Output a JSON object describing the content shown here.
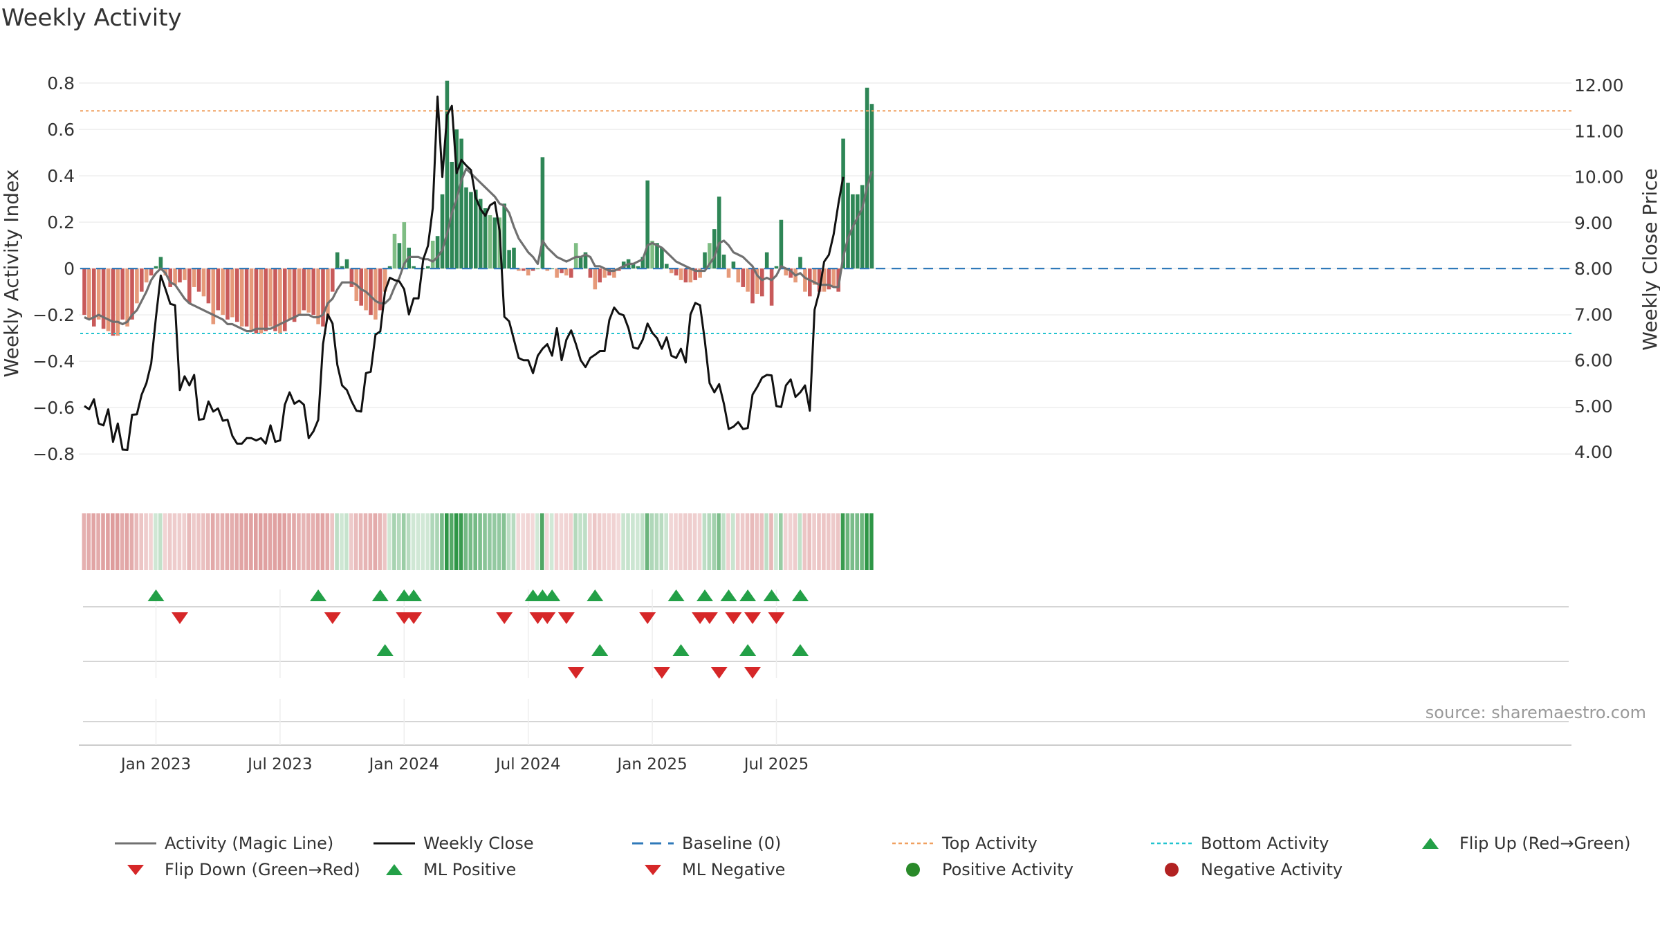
{
  "chart_data": {
    "type": "bar",
    "title": "Weekly Activity",
    "ylabel_left": "Weekly Activity Index",
    "ylabel_right": "Weekly Close Price",
    "ylim_left": [
      -0.88,
      0.83
    ],
    "ylim_right": [
      3.55,
      12.2
    ],
    "yticks_left": [
      "0.8",
      "0.6",
      "0.4",
      "0.2",
      "0",
      "−0.2",
      "−0.4",
      "−0.6",
      "−0.8"
    ],
    "yticks_left_values": [
      0.8,
      0.6,
      0.4,
      0.2,
      0,
      -0.2,
      -0.4,
      -0.6,
      -0.8
    ],
    "yticks_right": [
      "12.00",
      "11.00",
      "10.00",
      "9.00",
      "8.00",
      "7.00",
      "6.00",
      "5.00",
      "4.00"
    ],
    "yticks_right_values": [
      12,
      11,
      10,
      9,
      8,
      7,
      6,
      5,
      4
    ],
    "xticks": [
      "Jan 2023",
      "Jul 2023",
      "Jan 2024",
      "Jul 2024",
      "Jan 2025",
      "Jul 2025"
    ],
    "xticks_week_index": [
      15,
      41,
      67,
      93,
      119,
      145
    ],
    "top_activity": 0.68,
    "bottom_activity": -0.28,
    "baseline": 0,
    "activity": [
      -0.2,
      -0.22,
      -0.25,
      -0.22,
      -0.26,
      -0.27,
      -0.29,
      -0.29,
      -0.22,
      -0.25,
      -0.22,
      -0.15,
      -0.1,
      -0.06,
      -0.03,
      0.01,
      0.05,
      -0.03,
      -0.08,
      -0.07,
      -0.06,
      -0.05,
      -0.15,
      -0.08,
      -0.1,
      -0.12,
      -0.15,
      -0.24,
      -0.18,
      -0.2,
      -0.22,
      -0.21,
      -0.23,
      -0.25,
      -0.25,
      -0.27,
      -0.28,
      -0.28,
      -0.27,
      -0.25,
      -0.27,
      -0.28,
      -0.27,
      -0.22,
      -0.23,
      -0.2,
      -0.18,
      -0.19,
      -0.2,
      -0.24,
      -0.25,
      -0.22,
      -0.1,
      0.07,
      0.01,
      0.04,
      -0.08,
      -0.14,
      -0.16,
      -0.18,
      -0.2,
      -0.22,
      -0.18,
      -0.1,
      0.01,
      0.15,
      0.11,
      0.2,
      0.09,
      0.01,
      0.0,
      0.0,
      0.01,
      0.12,
      0.14,
      0.32,
      0.81,
      0.46,
      0.6,
      0.56,
      0.35,
      0.33,
      0.34,
      0.3,
      0.26,
      0.23,
      0.22,
      0.22,
      0.28,
      0.08,
      0.09,
      -0.01,
      -0.01,
      -0.03,
      -0.01,
      0.0,
      0.48,
      -0.01,
      0.0,
      -0.04,
      -0.02,
      -0.03,
      -0.04,
      0.11,
      0.05,
      0.07,
      -0.04,
      -0.09,
      -0.06,
      -0.04,
      -0.03,
      -0.04,
      -0.01,
      0.03,
      0.04,
      0.02,
      0.01,
      0.05,
      0.38,
      0.12,
      0.11,
      0.09,
      0.02,
      -0.02,
      -0.03,
      -0.05,
      -0.06,
      -0.06,
      -0.05,
      -0.04,
      0.07,
      0.11,
      0.17,
      0.31,
      0.06,
      -0.04,
      0.03,
      -0.06,
      -0.08,
      -0.1,
      -0.15,
      -0.11,
      -0.12,
      0.07,
      -0.16,
      0.01,
      0.21,
      -0.03,
      -0.04,
      -0.06,
      0.05,
      -0.1,
      -0.12,
      -0.07,
      -0.1,
      -0.1,
      -0.09,
      -0.08,
      -0.1,
      0.56,
      0.37,
      0.32,
      0.32,
      0.36,
      0.78,
      0.71
    ],
    "magic_line": [
      -0.21,
      -0.22,
      -0.21,
      -0.2,
      -0.21,
      -0.22,
      -0.23,
      -0.23,
      -0.24,
      -0.23,
      -0.2,
      -0.18,
      -0.14,
      -0.1,
      -0.05,
      -0.02,
      0.0,
      -0.02,
      -0.06,
      -0.07,
      -0.1,
      -0.13,
      -0.15,
      -0.16,
      -0.17,
      -0.18,
      -0.19,
      -0.2,
      -0.21,
      -0.22,
      -0.24,
      -0.24,
      -0.25,
      -0.26,
      -0.27,
      -0.27,
      -0.26,
      -0.26,
      -0.26,
      -0.26,
      -0.25,
      -0.24,
      -0.23,
      -0.22,
      -0.21,
      -0.2,
      -0.2,
      -0.2,
      -0.21,
      -0.21,
      -0.2,
      -0.15,
      -0.13,
      -0.09,
      -0.06,
      -0.06,
      -0.06,
      -0.07,
      -0.09,
      -0.1,
      -0.12,
      -0.14,
      -0.15,
      -0.15,
      -0.13,
      -0.08,
      -0.04,
      0.02,
      0.05,
      0.05,
      0.05,
      0.04,
      0.04,
      0.03,
      0.05,
      0.08,
      0.15,
      0.24,
      0.3,
      0.38,
      0.43,
      0.41,
      0.39,
      0.37,
      0.35,
      0.33,
      0.31,
      0.28,
      0.27,
      0.24,
      0.18,
      0.13,
      0.1,
      0.07,
      0.05,
      0.02,
      0.12,
      0.09,
      0.07,
      0.05,
      0.04,
      0.03,
      0.04,
      0.05,
      0.05,
      0.06,
      0.05,
      0.01,
      0.01,
      0.0,
      -0.01,
      -0.01,
      0.0,
      0.01,
      0.02,
      0.02,
      0.03,
      0.04,
      0.1,
      0.11,
      0.1,
      0.09,
      0.07,
      0.05,
      0.03,
      0.02,
      0.01,
      0.0,
      -0.01,
      -0.01,
      -0.01,
      0.02,
      0.05,
      0.11,
      0.12,
      0.1,
      0.07,
      0.06,
      0.05,
      0.03,
      0.01,
      -0.03,
      -0.05,
      -0.04,
      -0.05,
      -0.03,
      0.01,
      0.0,
      -0.01,
      -0.03,
      -0.02,
      -0.04,
      -0.05,
      -0.06,
      -0.07,
      -0.07,
      -0.07,
      -0.08,
      -0.08,
      0.05,
      0.13,
      0.18,
      0.22,
      0.26,
      0.35,
      0.42
    ],
    "weekly_close": [
      5.0,
      4.93,
      5.15,
      4.62,
      4.58,
      4.93,
      4.22,
      4.62,
      4.05,
      4.04,
      4.81,
      4.82,
      5.25,
      5.5,
      5.93,
      6.94,
      7.85,
      7.55,
      7.23,
      7.2,
      5.35,
      5.65,
      5.45,
      5.68,
      4.7,
      4.72,
      5.1,
      4.88,
      4.95,
      4.68,
      4.7,
      4.35,
      4.18,
      4.18,
      4.3,
      4.3,
      4.25,
      4.3,
      4.18,
      4.58,
      4.22,
      4.25,
      5.03,
      5.3,
      5.05,
      5.12,
      5.03,
      4.3,
      4.45,
      4.7,
      6.35,
      7.0,
      6.8,
      5.9,
      5.45,
      5.35,
      5.1,
      4.9,
      4.88,
      5.72,
      5.75,
      6.56,
      6.63,
      7.51,
      7.8,
      7.75,
      7.72,
      7.55,
      7.0,
      7.35,
      7.35,
      8.2,
      8.5,
      9.32,
      11.75,
      10.0,
      11.35,
      11.55,
      10.08,
      10.37,
      10.25,
      10.15,
      9.55,
      9.3,
      9.15,
      9.38,
      9.45,
      8.83,
      6.95,
      6.85,
      6.45,
      6.05,
      6.0,
      6.0,
      5.72,
      6.1,
      6.25,
      6.35,
      6.1,
      6.7,
      6.0,
      6.45,
      6.65,
      6.35,
      6.0,
      5.85,
      6.05,
      6.12,
      6.2,
      6.2,
      6.88,
      7.15,
      7.02,
      6.98,
      6.7,
      6.28,
      6.25,
      6.45,
      6.8,
      6.6,
      6.48,
      6.25,
      6.5,
      6.1,
      6.05,
      6.25,
      5.95,
      7.0,
      7.25,
      7.2,
      6.43,
      5.5,
      5.3,
      5.48,
      5.05,
      4.5,
      4.55,
      4.65,
      4.5,
      4.52,
      5.25,
      5.42,
      5.62,
      5.68,
      5.67,
      5.0,
      4.98,
      5.45,
      5.58,
      5.2,
      5.3,
      5.45,
      4.9,
      7.1,
      7.5,
      8.15,
      8.3,
      8.75,
      9.42,
      10.0
    ],
    "heat_strip": "one cell per week; colour encodes activity sign and strength",
    "signal_rows": [
      {
        "name": "Flip Up/Down",
        "up_weeks": [
          15,
          49,
          62,
          67,
          69,
          94,
          96,
          98,
          107,
          124,
          130,
          135,
          139,
          144,
          150
        ],
        "down_weeks": [
          20,
          52,
          67,
          69,
          88,
          95,
          97,
          101,
          118,
          129,
          131,
          136,
          140,
          145
        ]
      },
      {
        "name": "ML",
        "up_weeks": [
          63,
          108,
          125,
          139,
          150
        ],
        "down_weeks": [
          103,
          121,
          133,
          140
        ]
      }
    ],
    "source_text": "source: sharemaestro.com",
    "legend": [
      "Activity (Magic Line)",
      "Weekly Close",
      "Baseline (0)",
      "Top Activity",
      "Bottom Activity",
      "Flip Up (Red→Green)",
      "Flip Down (Green→Red)",
      "ML Positive",
      "ML Negative",
      "Positive Activity",
      "Negative Activity"
    ]
  },
  "colors": {
    "pos_strong": "#2e8656",
    "pos_light": "#7fbd84",
    "neg_strong": "#c85a5a",
    "neg_light": "#e69a7a",
    "magic_line": "#707070",
    "close_line": "#111111",
    "baseline": "#2f79b9",
    "top_line": "#f0a060",
    "bottom_line": "#22c3cf",
    "up_marker": "#23a047",
    "down_marker": "#d62728",
    "dot_pos": "#2a8a2a",
    "dot_neg": "#b22222"
  }
}
